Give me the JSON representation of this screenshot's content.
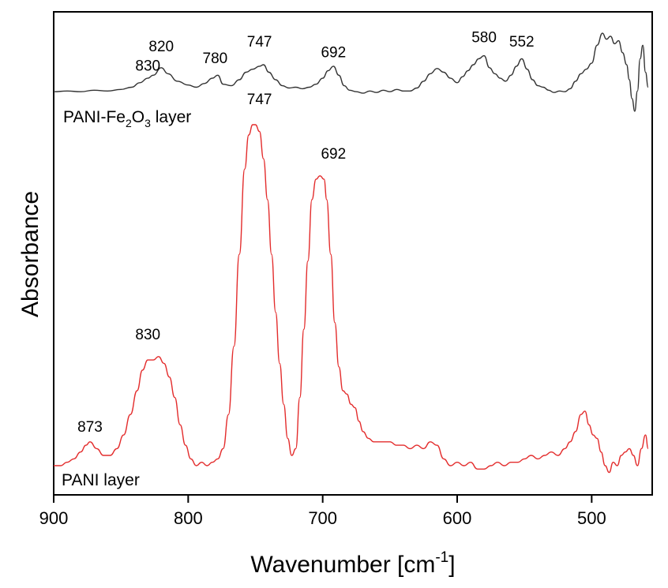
{
  "chart_data": {
    "type": "line",
    "xlabel": "Wavenumber [cm",
    "xlabel_sup": "-1",
    "xlabel_end": "]",
    "ylabel": "Absorbance",
    "xlim": [
      900,
      455
    ],
    "x_reversed": true,
    "xticks": [
      "900",
      "800",
      "700",
      "600",
      "500"
    ],
    "y_ticks_shown": false,
    "grid": false,
    "series": [
      {
        "name_parts": [
          "PANI-Fe",
          "2",
          "O",
          "3",
          " layer"
        ],
        "color": "#333333",
        "x": [
          900,
          890,
          880,
          870,
          860,
          850,
          842,
          836,
          830,
          826,
          820,
          815,
          808,
          800,
          794,
          788,
          782,
          778,
          774,
          768,
          762,
          757,
          752,
          747,
          744,
          740,
          735,
          730,
          725,
          720,
          715,
          710,
          705,
          700,
          696,
          692,
          688,
          684,
          680,
          675,
          670,
          665,
          660,
          655,
          650,
          645,
          640,
          635,
          630,
          625,
          620,
          615,
          610,
          605,
          600,
          596,
          592,
          588,
          584,
          580,
          576,
          572,
          568,
          564,
          560,
          556,
          552,
          548,
          544,
          540,
          536,
          532,
          528,
          524,
          520,
          516,
          512,
          508,
          504,
          500,
          496,
          492,
          489,
          486,
          483,
          480,
          477,
          474,
          472,
          470,
          468,
          466,
          464,
          462,
          460,
          458
        ],
        "y": [
          0.04,
          0.05,
          0.04,
          0.06,
          0.05,
          0.07,
          0.1,
          0.16,
          0.22,
          0.26,
          0.36,
          0.28,
          0.18,
          0.13,
          0.1,
          0.15,
          0.22,
          0.26,
          0.14,
          0.12,
          0.2,
          0.3,
          0.34,
          0.38,
          0.4,
          0.3,
          0.2,
          0.12,
          0.09,
          0.1,
          0.08,
          0.1,
          0.14,
          0.22,
          0.32,
          0.38,
          0.26,
          0.12,
          0.06,
          0.04,
          0.02,
          0.05,
          0.03,
          0.06,
          0.04,
          0.07,
          0.05,
          0.05,
          0.09,
          0.18,
          0.28,
          0.35,
          0.3,
          0.22,
          0.16,
          0.24,
          0.32,
          0.4,
          0.48,
          0.52,
          0.36,
          0.28,
          0.22,
          0.18,
          0.26,
          0.38,
          0.48,
          0.34,
          0.2,
          0.12,
          0.1,
          0.06,
          0.03,
          0.05,
          0.04,
          0.08,
          0.18,
          0.28,
          0.34,
          0.42,
          0.66,
          0.82,
          0.74,
          0.78,
          0.68,
          0.72,
          0.56,
          0.4,
          0.2,
          -0.05,
          -0.22,
          0.05,
          0.48,
          0.66,
          0.3,
          0.1
        ],
        "annotations": [
          {
            "x": 830,
            "y": 0.32,
            "text": "830"
          },
          {
            "x": 820,
            "y": 0.58,
            "text": "820"
          },
          {
            "x": 780,
            "y": 0.42,
            "text": "780"
          },
          {
            "x": 747,
            "y": 0.64,
            "text": "747"
          },
          {
            "x": 692,
            "y": 0.5,
            "text": "692"
          },
          {
            "x": 580,
            "y": 0.7,
            "text": "580"
          },
          {
            "x": 552,
            "y": 0.64,
            "text": "552"
          }
        ]
      },
      {
        "name": "PANI layer",
        "color": "#e32c2c",
        "x": [
          900,
          895,
          890,
          885,
          880,
          876,
          873,
          868,
          863,
          858,
          853,
          848,
          843,
          838,
          834,
          830,
          826,
          822,
          818,
          814,
          810,
          806,
          802,
          798,
          794,
          790,
          786,
          782,
          778,
          774,
          770,
          766,
          762,
          758,
          755,
          752,
          750,
          747,
          744,
          741,
          738,
          735,
          732,
          729,
          726,
          723,
          720,
          717,
          714,
          711,
          708,
          705,
          702,
          699,
          697,
          694,
          691,
          688,
          685,
          682,
          679,
          676,
          673,
          670,
          666,
          662,
          658,
          654,
          650,
          645,
          640,
          635,
          630,
          625,
          620,
          615,
          610,
          605,
          600,
          595,
          590,
          585,
          580,
          575,
          570,
          565,
          560,
          555,
          550,
          545,
          540,
          535,
          530,
          525,
          520,
          516,
          512,
          508,
          505,
          502,
          499,
          496,
          493,
          490,
          487,
          484,
          481,
          478,
          475,
          472,
          469,
          466,
          463,
          460,
          458
        ],
        "y": [
          0.0,
          0.0,
          0.01,
          0.02,
          0.04,
          0.06,
          0.07,
          0.05,
          0.03,
          0.03,
          0.05,
          0.09,
          0.15,
          0.22,
          0.28,
          0.31,
          0.31,
          0.32,
          0.3,
          0.26,
          0.2,
          0.12,
          0.06,
          0.02,
          0.0,
          0.01,
          0.0,
          0.01,
          0.02,
          0.05,
          0.15,
          0.35,
          0.62,
          0.87,
          0.97,
          1.0,
          1.0,
          0.98,
          0.9,
          0.78,
          0.62,
          0.45,
          0.3,
          0.18,
          0.08,
          0.03,
          0.05,
          0.2,
          0.4,
          0.6,
          0.78,
          0.84,
          0.85,
          0.84,
          0.78,
          0.62,
          0.42,
          0.29,
          0.22,
          0.21,
          0.18,
          0.17,
          0.13,
          0.1,
          0.08,
          0.07,
          0.07,
          0.07,
          0.07,
          0.06,
          0.06,
          0.05,
          0.06,
          0.05,
          0.07,
          0.06,
          0.02,
          0.0,
          0.01,
          0.0,
          0.01,
          -0.01,
          -0.01,
          0.0,
          0.01,
          0.0,
          0.01,
          0.01,
          0.02,
          0.03,
          0.02,
          0.03,
          0.04,
          0.03,
          0.05,
          0.07,
          0.1,
          0.15,
          0.16,
          0.12,
          0.09,
          0.08,
          0.04,
          0.0,
          -0.02,
          0.01,
          0.0,
          0.03,
          0.04,
          0.05,
          0.03,
          0.0,
          0.05,
          0.09,
          0.05
        ],
        "annotations": [
          {
            "x": 873,
            "y": 0.1,
            "text": "873"
          },
          {
            "x": 830,
            "y": 0.37,
            "text": "830"
          },
          {
            "x": 747,
            "y": 1.06,
            "text": "747"
          },
          {
            "x": 692,
            "y": 0.9,
            "text": "692"
          }
        ]
      }
    ]
  }
}
